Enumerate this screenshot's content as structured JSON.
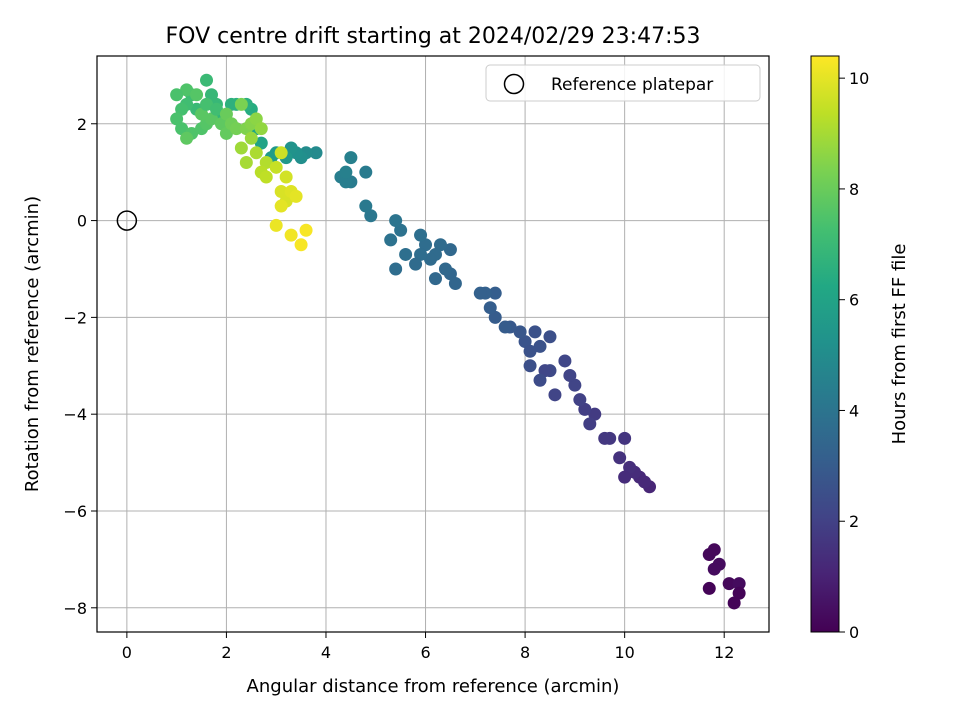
{
  "chart_data": {
    "type": "scatter",
    "title": "FOV centre drift starting at 2024/02/29 23:47:53",
    "xlabel": "Angular distance from reference (arcmin)",
    "ylabel": "Rotation from reference (arcmin)",
    "xlim": [
      -0.6,
      12.9
    ],
    "ylim": [
      -8.5,
      3.4
    ],
    "xticks": [
      0,
      2,
      4,
      6,
      8,
      10,
      12
    ],
    "yticks": [
      -8,
      -6,
      -4,
      -2,
      0,
      2
    ],
    "grid": true,
    "legend": {
      "location": "top-right",
      "entries": [
        "Reference platepar"
      ]
    },
    "reference_point": {
      "x": 0,
      "y": 0
    },
    "colorbar": {
      "label": "Hours from first FF file",
      "colormap": "viridis",
      "range": [
        0,
        10.4
      ],
      "ticks": [
        0,
        2,
        4,
        6,
        8,
        10
      ]
    },
    "series": [
      {
        "points": [
          [
            11.7,
            -6.9,
            0.2
          ],
          [
            11.8,
            -6.8,
            0.2
          ],
          [
            11.9,
            -7.1,
            0.3
          ],
          [
            11.8,
            -7.2,
            0.3
          ],
          [
            11.7,
            -7.6,
            0.1
          ],
          [
            12.1,
            -7.5,
            0.2
          ],
          [
            12.3,
            -7.5,
            0.3
          ],
          [
            12.3,
            -7.7,
            0.1
          ],
          [
            12.2,
            -7.9,
            0.1
          ],
          [
            10.5,
            -5.5,
            1.1
          ],
          [
            10.3,
            -5.3,
            1.2
          ],
          [
            10.2,
            -5.2,
            1.3
          ],
          [
            10.4,
            -5.4,
            1.2
          ],
          [
            10.1,
            -5.1,
            1.4
          ],
          [
            10.0,
            -5.3,
            1.3
          ],
          [
            9.9,
            -4.9,
            1.5
          ],
          [
            10.0,
            -4.5,
            1.6
          ],
          [
            9.7,
            -4.5,
            1.7
          ],
          [
            9.6,
            -4.5,
            1.7
          ],
          [
            9.4,
            -4.0,
            1.8
          ],
          [
            9.3,
            -4.2,
            1.9
          ],
          [
            9.2,
            -3.9,
            1.9
          ],
          [
            9.1,
            -3.7,
            2.0
          ],
          [
            9.0,
            -3.4,
            2.1
          ],
          [
            8.9,
            -3.2,
            2.1
          ],
          [
            8.8,
            -2.9,
            2.2
          ],
          [
            8.6,
            -3.6,
            2.1
          ],
          [
            8.5,
            -3.1,
            2.3
          ],
          [
            8.4,
            -3.1,
            2.2
          ],
          [
            8.3,
            -3.3,
            2.4
          ],
          [
            8.5,
            -2.4,
            2.5
          ],
          [
            8.3,
            -2.6,
            2.6
          ],
          [
            8.2,
            -2.3,
            2.6
          ],
          [
            8.0,
            -2.5,
            2.7
          ],
          [
            8.1,
            -2.7,
            2.6
          ],
          [
            7.9,
            -2.3,
            2.8
          ],
          [
            8.1,
            -3.0,
            2.5
          ],
          [
            7.7,
            -2.2,
            2.9
          ],
          [
            7.6,
            -2.2,
            3.0
          ],
          [
            7.4,
            -2.0,
            3.0
          ],
          [
            7.3,
            -1.8,
            3.1
          ],
          [
            7.4,
            -1.5,
            3.1
          ],
          [
            7.2,
            -1.5,
            3.2
          ],
          [
            7.1,
            -1.5,
            3.2
          ],
          [
            6.6,
            -1.3,
            3.4
          ],
          [
            6.5,
            -1.1,
            3.4
          ],
          [
            6.4,
            -1.0,
            3.5
          ],
          [
            6.2,
            -1.2,
            3.5
          ],
          [
            6.5,
            -0.6,
            3.5
          ],
          [
            6.3,
            -0.5,
            3.6
          ],
          [
            6.2,
            -0.7,
            3.6
          ],
          [
            6.0,
            -0.5,
            3.7
          ],
          [
            6.1,
            -0.8,
            3.6
          ],
          [
            5.9,
            -0.7,
            3.7
          ],
          [
            5.8,
            -0.9,
            3.6
          ],
          [
            5.9,
            -0.3,
            3.8
          ],
          [
            5.6,
            -0.7,
            3.8
          ],
          [
            5.4,
            -1.0,
            3.7
          ],
          [
            5.5,
            -0.2,
            3.9
          ],
          [
            5.3,
            -0.4,
            3.9
          ],
          [
            5.4,
            0.0,
            4.0
          ],
          [
            4.9,
            0.1,
            4.1
          ],
          [
            4.8,
            0.3,
            4.2
          ],
          [
            4.8,
            1.0,
            4.3
          ],
          [
            4.5,
            0.8,
            4.3
          ],
          [
            4.4,
            0.8,
            4.4
          ],
          [
            4.3,
            0.9,
            4.4
          ],
          [
            4.4,
            1.0,
            4.5
          ],
          [
            4.5,
            1.3,
            4.5
          ],
          [
            3.8,
            1.4,
            4.9
          ],
          [
            3.6,
            1.4,
            5.0
          ],
          [
            3.5,
            1.3,
            5.1
          ],
          [
            3.4,
            1.4,
            5.2
          ],
          [
            3.3,
            1.5,
            5.3
          ],
          [
            3.2,
            1.3,
            5.5
          ],
          [
            3.0,
            1.4,
            5.6
          ],
          [
            2.9,
            1.3,
            5.7
          ],
          [
            2.7,
            1.6,
            6.0
          ],
          [
            2.6,
            1.9,
            6.2
          ],
          [
            2.5,
            2.3,
            6.4
          ],
          [
            2.4,
            2.4,
            6.5
          ],
          [
            2.2,
            2.4,
            6.6
          ],
          [
            2.1,
            2.4,
            6.6
          ],
          [
            1.9,
            2.1,
            6.8
          ],
          [
            1.8,
            2.4,
            6.9
          ],
          [
            1.7,
            2.6,
            6.9
          ],
          [
            1.6,
            2.9,
            7.0
          ],
          [
            1.4,
            2.3,
            7.0
          ],
          [
            1.3,
            2.6,
            7.1
          ],
          [
            1.2,
            2.4,
            7.2
          ],
          [
            1.1,
            2.3,
            7.3
          ],
          [
            1.0,
            2.1,
            7.4
          ],
          [
            1.1,
            1.9,
            7.4
          ],
          [
            1.3,
            1.8,
            7.5
          ],
          [
            1.5,
            1.9,
            7.5
          ],
          [
            1.6,
            2.0,
            7.6
          ],
          [
            1.7,
            2.1,
            7.7
          ],
          [
            1.9,
            2.0,
            7.8
          ],
          [
            2.0,
            1.8,
            7.9
          ],
          [
            1.2,
            2.7,
            7.5
          ],
          [
            1.4,
            2.6,
            7.6
          ],
          [
            1.5,
            2.2,
            7.7
          ],
          [
            1.2,
            1.7,
            7.8
          ],
          [
            1.0,
            2.6,
            7.4
          ],
          [
            1.6,
            2.4,
            7.3
          ],
          [
            1.8,
            2.3,
            7.2
          ],
          [
            2.0,
            2.2,
            8.0
          ],
          [
            2.1,
            2.0,
            8.1
          ],
          [
            2.2,
            1.9,
            8.2
          ],
          [
            2.3,
            2.4,
            8.3
          ],
          [
            2.4,
            1.9,
            8.4
          ],
          [
            2.5,
            2.0,
            8.5
          ],
          [
            2.6,
            2.1,
            8.6
          ],
          [
            2.7,
            1.9,
            8.7
          ],
          [
            2.5,
            1.7,
            8.8
          ],
          [
            2.3,
            1.5,
            8.9
          ],
          [
            2.4,
            1.2,
            9.0
          ],
          [
            2.6,
            1.4,
            9.1
          ],
          [
            2.8,
            1.2,
            9.2
          ],
          [
            2.7,
            1.0,
            9.3
          ],
          [
            2.8,
            0.9,
            9.4
          ],
          [
            3.0,
            1.1,
            9.5
          ],
          [
            3.1,
            1.4,
            9.6
          ],
          [
            3.2,
            0.9,
            9.7
          ],
          [
            3.1,
            0.6,
            9.8
          ],
          [
            3.2,
            0.4,
            9.8
          ],
          [
            3.3,
            0.6,
            9.9
          ],
          [
            3.1,
            0.3,
            10.0
          ],
          [
            3.4,
            0.5,
            10.0
          ],
          [
            3.0,
            -0.1,
            10.1
          ],
          [
            3.3,
            -0.3,
            10.2
          ],
          [
            3.6,
            -0.2,
            10.3
          ],
          [
            3.5,
            -0.5,
            10.3
          ]
        ]
      }
    ]
  }
}
